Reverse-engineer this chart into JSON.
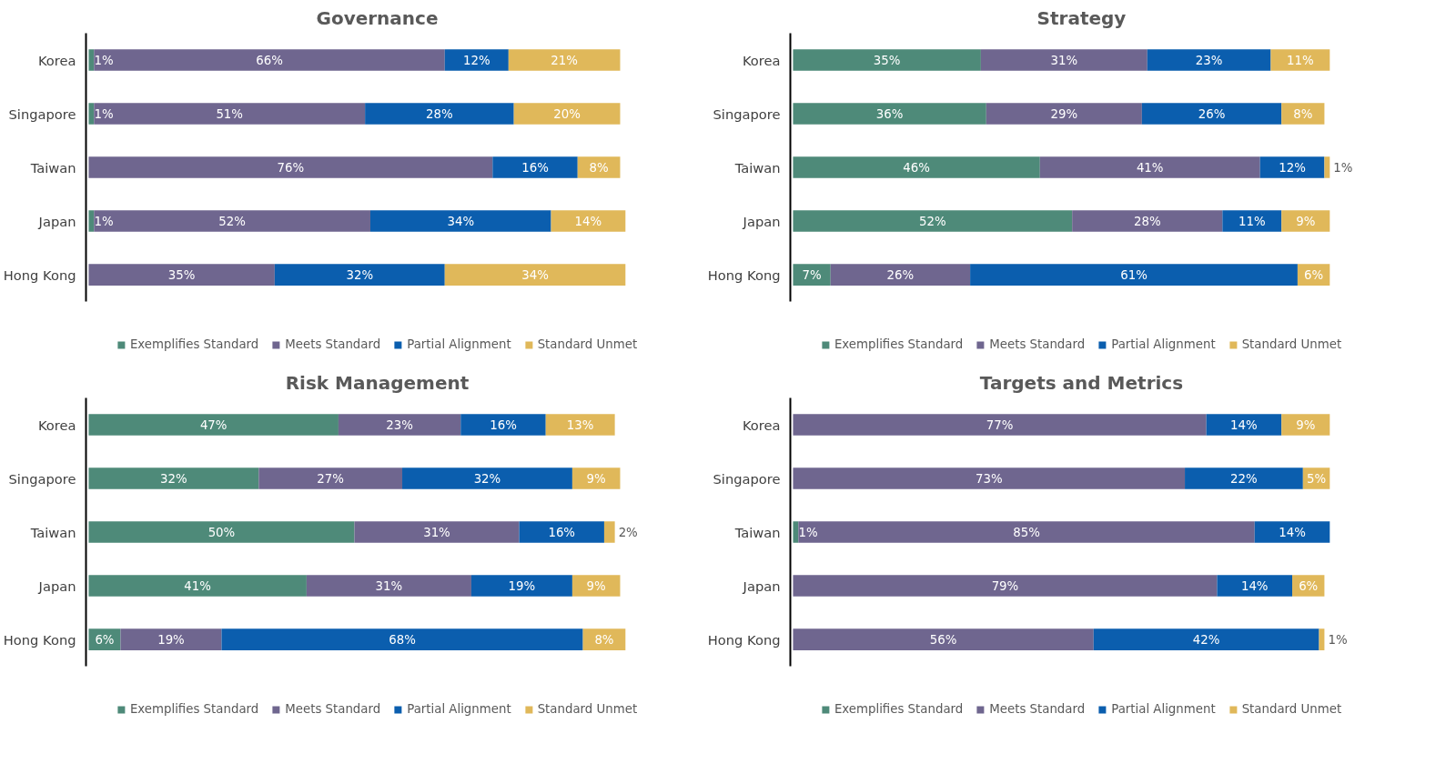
{
  "chart_data": [
    {
      "type": "bar",
      "title": "Governance",
      "orientation": "horizontal",
      "stacked": true,
      "legend": "bottom",
      "grid": false,
      "tick_labels": "y",
      "categories": [
        "Korea",
        "Singapore",
        "Taiwan",
        "Japan",
        "Hong Kong"
      ],
      "series": [
        {
          "name": "Exemplifies Standard",
          "color": "#4e8a79",
          "values": [
            1,
            1,
            null,
            1,
            null
          ],
          "value_labels": [
            "1%",
            "1%",
            null,
            "1%",
            null
          ]
        },
        {
          "name": "Meets Standard",
          "color": "#6f668f",
          "values": [
            66,
            51,
            76,
            52,
            35
          ],
          "value_labels": [
            "66%",
            "51%",
            "76%",
            "52%",
            "35%"
          ]
        },
        {
          "name": "Partial Alignment",
          "color": "#0b5eae",
          "values": [
            12,
            28,
            16,
            34,
            32
          ],
          "value_labels": [
            "12%",
            "28%",
            "16%",
            "34%",
            "32%"
          ]
        },
        {
          "name": "Standard Unmet",
          "color": "#e0b85a",
          "values": [
            21,
            20,
            8,
            14,
            34
          ],
          "value_labels": [
            "21%",
            "20%",
            "8%",
            "14%",
            "34%"
          ]
        }
      ]
    },
    {
      "type": "bar",
      "title": "Strategy",
      "orientation": "horizontal",
      "stacked": true,
      "legend": "bottom",
      "grid": false,
      "tick_labels": "y",
      "categories": [
        "Korea",
        "Singapore",
        "Taiwan",
        "Japan",
        "Hong Kong"
      ],
      "series": [
        {
          "name": "Exemplifies Standard",
          "color": "#4e8a79",
          "values": [
            35,
            36,
            46,
            52,
            7
          ],
          "value_labels": [
            "35%",
            "36%",
            "46%",
            "52%",
            "7%"
          ]
        },
        {
          "name": "Meets Standard",
          "color": "#6f668f",
          "values": [
            31,
            29,
            41,
            28,
            26
          ],
          "value_labels": [
            "31%",
            "29%",
            "41%",
            "28%",
            "26%"
          ]
        },
        {
          "name": "Partial Alignment",
          "color": "#0b5eae",
          "values": [
            23,
            26,
            12,
            11,
            61
          ],
          "value_labels": [
            "23%",
            "26%",
            "12%",
            "11%",
            "61%"
          ]
        },
        {
          "name": "Standard Unmet",
          "color": "#e0b85a",
          "values": [
            11,
            8,
            1,
            9,
            6
          ],
          "value_labels": [
            "11%",
            "8%",
            "1%",
            "9%",
            "6%"
          ]
        }
      ]
    },
    {
      "type": "bar",
      "title": "Risk Management",
      "orientation": "horizontal",
      "stacked": true,
      "legend": "bottom",
      "grid": false,
      "tick_labels": "y",
      "categories": [
        "Korea",
        "Singapore",
        "Taiwan",
        "Japan",
        "Hong Kong"
      ],
      "series": [
        {
          "name": "Exemplifies Standard",
          "color": "#4e8a79",
          "values": [
            47,
            32,
            50,
            41,
            6
          ],
          "value_labels": [
            "47%",
            "32%",
            "50%",
            "41%",
            "6%"
          ]
        },
        {
          "name": "Meets Standard",
          "color": "#6f668f",
          "values": [
            23,
            27,
            31,
            31,
            19
          ],
          "value_labels": [
            "23%",
            "27%",
            "31%",
            "31%",
            "19%"
          ]
        },
        {
          "name": "Partial Alignment",
          "color": "#0b5eae",
          "values": [
            16,
            32,
            16,
            19,
            68
          ],
          "value_labels": [
            "16%",
            "32%",
            "16%",
            "19%",
            "68%"
          ]
        },
        {
          "name": "Standard Unmet",
          "color": "#e0b85a",
          "values": [
            13,
            9,
            2,
            9,
            8
          ],
          "value_labels": [
            "13%",
            "9%",
            "2%",
            "9%",
            "8%"
          ]
        }
      ]
    },
    {
      "type": "bar",
      "title": "Targets and Metrics",
      "orientation": "horizontal",
      "stacked": true,
      "legend": "bottom",
      "grid": false,
      "tick_labels": "y",
      "categories": [
        "Korea",
        "Singapore",
        "Taiwan",
        "Japan",
        "Hong Kong"
      ],
      "series": [
        {
          "name": "Exemplifies Standard",
          "color": "#4e8a79",
          "values": [
            null,
            null,
            1,
            null,
            null
          ],
          "value_labels": [
            null,
            null,
            "1%",
            null,
            null
          ]
        },
        {
          "name": "Meets Standard",
          "color": "#6f668f",
          "values": [
            77,
            73,
            85,
            79,
            56
          ],
          "value_labels": [
            "77%",
            "73%",
            "85%",
            "79%",
            "56%"
          ]
        },
        {
          "name": "Partial Alignment",
          "color": "#0b5eae",
          "values": [
            14,
            22,
            14,
            14,
            42
          ],
          "value_labels": [
            "14%",
            "22%",
            "14%",
            "14%",
            "42%"
          ]
        },
        {
          "name": "Standard Unmet",
          "color": "#e0b85a",
          "values": [
            9,
            5,
            null,
            6,
            1
          ],
          "value_labels": [
            "9%",
            "5%",
            null,
            "6%",
            "1%"
          ]
        }
      ]
    }
  ]
}
